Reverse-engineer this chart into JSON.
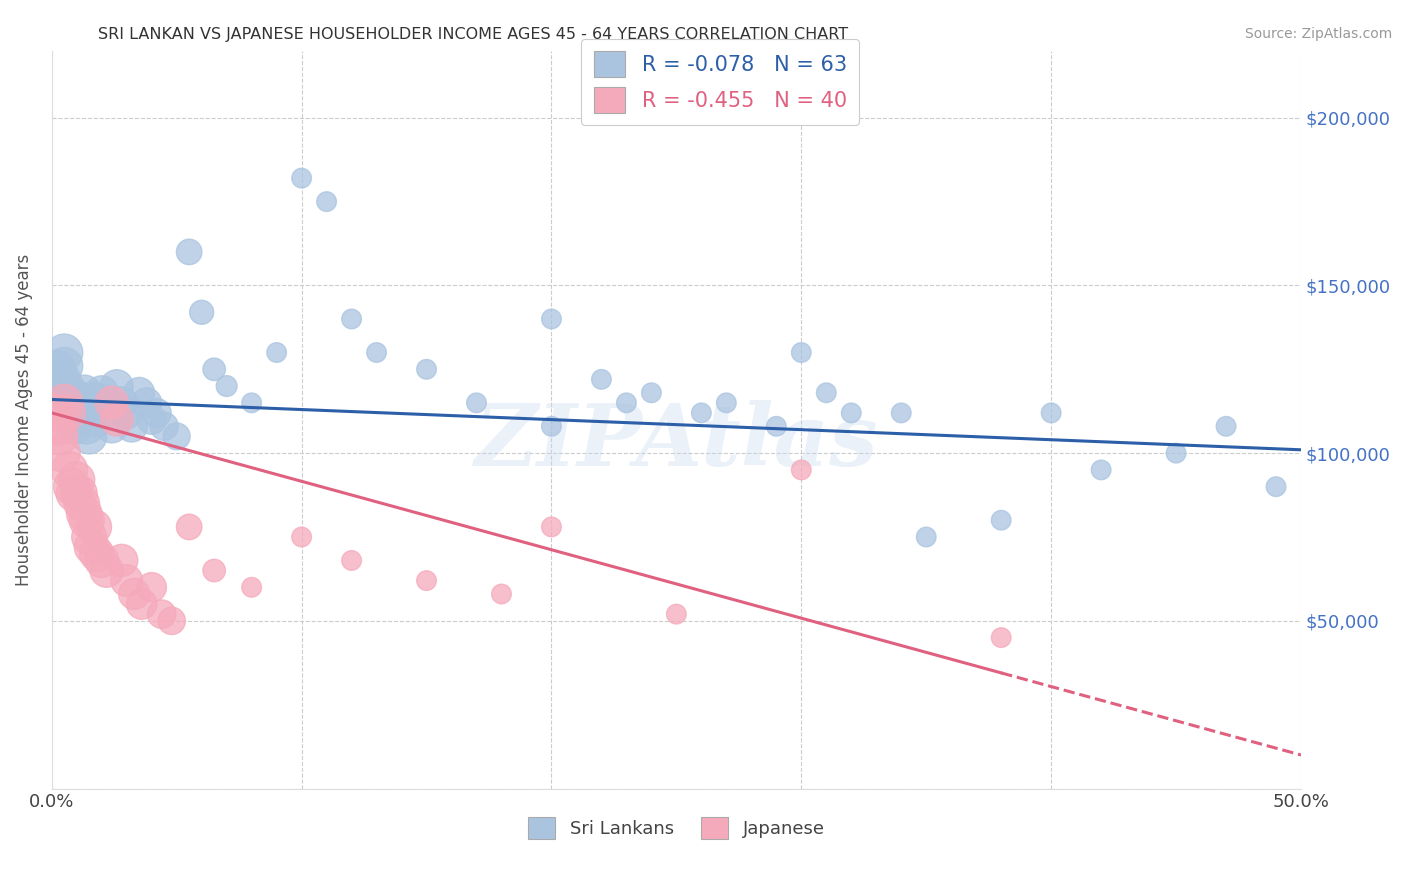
{
  "title": "SRI LANKAN VS JAPANESE HOUSEHOLDER INCOME AGES 45 - 64 YEARS CORRELATION CHART",
  "source": "Source: ZipAtlas.com",
  "ylabel": "Householder Income Ages 45 - 64 years",
  "xlim": [
    0.0,
    0.5
  ],
  "ylim": [
    0,
    220000
  ],
  "ytick_labels_right": [
    "$200,000",
    "$150,000",
    "$100,000",
    "$50,000"
  ],
  "ytick_values_right": [
    200000,
    150000,
    100000,
    50000
  ],
  "sri_lankan_color": "#aac4e0",
  "japanese_color": "#f5aabb",
  "sri_lankan_line_color": "#2c5fa8",
  "japanese_line_color": "#e06080",
  "background_color": "#ffffff",
  "watermark": "ZIPAtlas",
  "sri_lankans_x": [
    0.001,
    0.002,
    0.003,
    0.004,
    0.005,
    0.005,
    0.006,
    0.007,
    0.008,
    0.009,
    0.01,
    0.011,
    0.012,
    0.013,
    0.014,
    0.015,
    0.016,
    0.017,
    0.018,
    0.02,
    0.022,
    0.024,
    0.026,
    0.028,
    0.03,
    0.032,
    0.035,
    0.038,
    0.04,
    0.042,
    0.045,
    0.05,
    0.055,
    0.06,
    0.065,
    0.07,
    0.08,
    0.09,
    0.1,
    0.11,
    0.12,
    0.13,
    0.15,
    0.17,
    0.2,
    0.22,
    0.24,
    0.27,
    0.3,
    0.32,
    0.35,
    0.38,
    0.4,
    0.42,
    0.45,
    0.47,
    0.49,
    0.2,
    0.23,
    0.26,
    0.29,
    0.31,
    0.34
  ],
  "sri_lankans_y": [
    120000,
    125000,
    118000,
    122000,
    130000,
    126000,
    119000,
    115000,
    112000,
    108000,
    110000,
    116000,
    113000,
    118000,
    108000,
    105000,
    112000,
    116000,
    110000,
    118000,
    115000,
    108000,
    120000,
    115000,
    112000,
    108000,
    118000,
    115000,
    110000,
    112000,
    108000,
    105000,
    160000,
    142000,
    125000,
    120000,
    115000,
    130000,
    182000,
    175000,
    140000,
    130000,
    125000,
    115000,
    140000,
    122000,
    118000,
    115000,
    130000,
    112000,
    75000,
    80000,
    112000,
    95000,
    100000,
    108000,
    90000,
    108000,
    115000,
    112000,
    108000,
    118000,
    112000
  ],
  "japanese_x": [
    0.001,
    0.002,
    0.003,
    0.004,
    0.005,
    0.006,
    0.007,
    0.008,
    0.009,
    0.01,
    0.011,
    0.012,
    0.013,
    0.014,
    0.015,
    0.016,
    0.017,
    0.018,
    0.02,
    0.022,
    0.024,
    0.026,
    0.028,
    0.03,
    0.033,
    0.036,
    0.04,
    0.044,
    0.048,
    0.055,
    0.065,
    0.08,
    0.1,
    0.12,
    0.15,
    0.18,
    0.2,
    0.25,
    0.3,
    0.38
  ],
  "japanese_y": [
    112000,
    108000,
    105000,
    100000,
    115000,
    112000,
    95000,
    90000,
    88000,
    92000,
    88000,
    85000,
    82000,
    80000,
    75000,
    72000,
    78000,
    70000,
    68000,
    65000,
    115000,
    110000,
    68000,
    62000,
    58000,
    55000,
    60000,
    52000,
    50000,
    78000,
    65000,
    60000,
    75000,
    68000,
    62000,
    58000,
    78000,
    52000,
    95000,
    45000
  ],
  "sri_lankan_trend_x": [
    0.0,
    0.5
  ],
  "sri_lankan_trend_y": [
    116000,
    101000
  ],
  "japanese_trend_x": [
    0.0,
    0.5
  ],
  "japanese_trend_y": [
    112000,
    10000
  ],
  "japanese_trend_dashed_start": 0.38,
  "marker_size": 500
}
